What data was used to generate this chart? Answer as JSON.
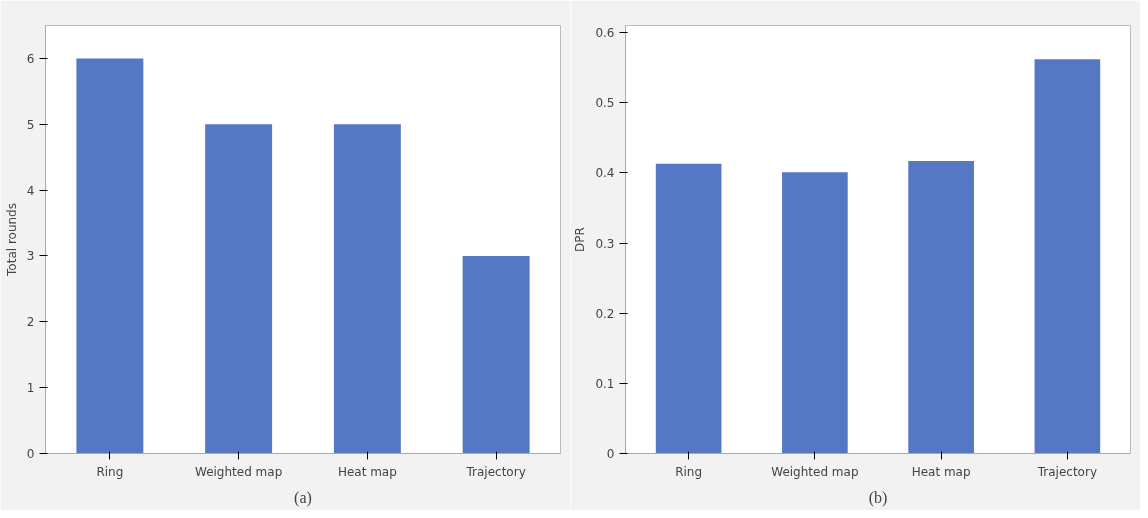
{
  "chart_data": [
    {
      "type": "bar",
      "ylabel": "Total rounds",
      "categories": [
        "Ring",
        "Weighted map",
        "Heat map",
        "Trajectory"
      ],
      "values": [
        6,
        5,
        5,
        3
      ],
      "color": "#5677c4",
      "ylim": [
        0,
        6.5
      ],
      "yticks": [
        0,
        1,
        2,
        3,
        4,
        5,
        6
      ],
      "grid": false,
      "annotations": [
        "(a)"
      ]
    },
    {
      "type": "bar",
      "ylabel": "DPR",
      "categories": [
        "Ring",
        "Weighted map",
        "Heat map",
        "Trajectory"
      ],
      "values": [
        0.413,
        0.401,
        0.417,
        0.562
      ],
      "color": "#5677c4",
      "ylim": [
        0,
        0.61
      ],
      "yticks": [
        0,
        0.1,
        0.2,
        0.3,
        0.4,
        0.5,
        0.6
      ],
      "grid": false,
      "annotations": [
        "(b)"
      ]
    }
  ]
}
